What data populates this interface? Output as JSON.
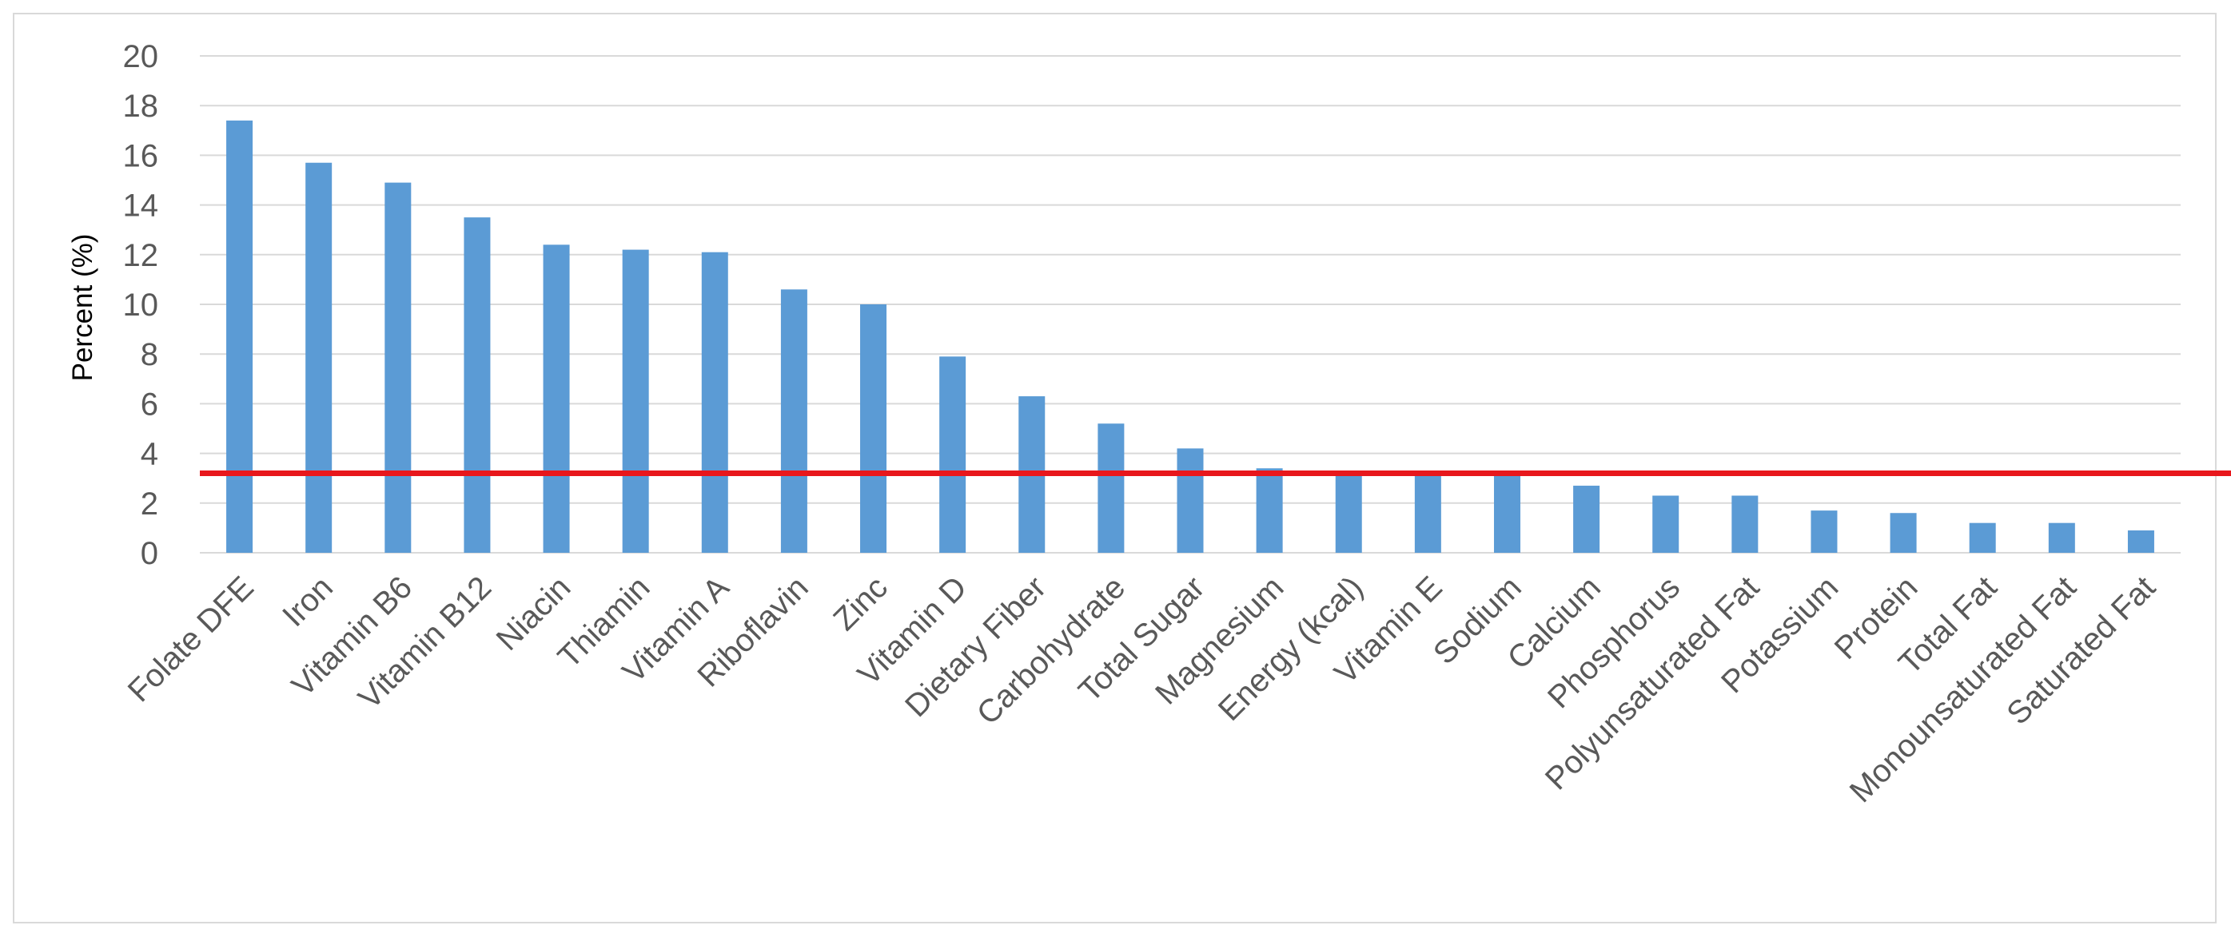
{
  "chart_data": {
    "type": "bar",
    "title": "",
    "xlabel": "",
    "ylabel": "Percent (%)",
    "ylim": [
      0,
      20
    ],
    "yticks": [
      0,
      2,
      4,
      6,
      8,
      10,
      12,
      14,
      16,
      18,
      20
    ],
    "grid": true,
    "legend": "none",
    "categories": [
      "Folate DFE",
      "Iron",
      "Vitamin B6",
      "Vitamin B12",
      "Niacin",
      "Thiamin",
      "Vitamin A",
      "Riboflavin",
      "Zinc",
      "Vitamin D",
      "Dietary Fiber",
      "Carbohydrate",
      "Total Sugar",
      "Magnesium",
      "Energy (kcal)",
      "Vitamin E",
      "Sodium",
      "Calcium",
      "Phosphorus",
      "Polyunsaturated Fat",
      "Potassium",
      "Protein",
      "Total Fat",
      "Monounsaturated Fat",
      "Saturated Fat"
    ],
    "values": [
      17.4,
      15.7,
      14.9,
      13.5,
      12.4,
      12.2,
      12.1,
      10.6,
      10.0,
      7.9,
      6.3,
      5.2,
      4.2,
      3.4,
      3.2,
      3.2,
      3.1,
      2.7,
      2.3,
      2.3,
      1.7,
      1.6,
      1.2,
      1.2,
      0.9
    ],
    "reference_line": {
      "y": 3.2,
      "color": "#e8171c"
    },
    "colors": {
      "bar": "#5b9bd5",
      "grid": "#d9d9d9",
      "tick_text": "#595959",
      "axis_title": "#000000"
    }
  }
}
